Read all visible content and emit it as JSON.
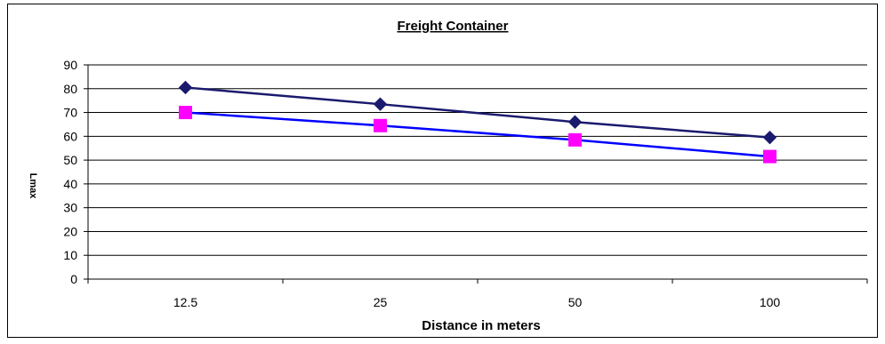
{
  "chart_data": {
    "type": "line",
    "title": "Freight Container",
    "xlabel": "Distance in meters",
    "ylabel": "Lmax",
    "categories": [
      "12.5",
      "25",
      "50",
      "100"
    ],
    "ylim": [
      0,
      90
    ],
    "yticks": [
      0,
      10,
      20,
      30,
      40,
      50,
      60,
      70,
      80,
      90
    ],
    "grid": "horizontal",
    "legend": "none",
    "series": [
      {
        "values": [
          80.5,
          73.5,
          66,
          59.5
        ],
        "color": "#1a1a6e",
        "marker": "diamond"
      },
      {
        "values": [
          70,
          64.5,
          58.5,
          51.5
        ],
        "color": "#0000ff",
        "marker": "square",
        "marker_color": "#ff00ff"
      }
    ]
  }
}
